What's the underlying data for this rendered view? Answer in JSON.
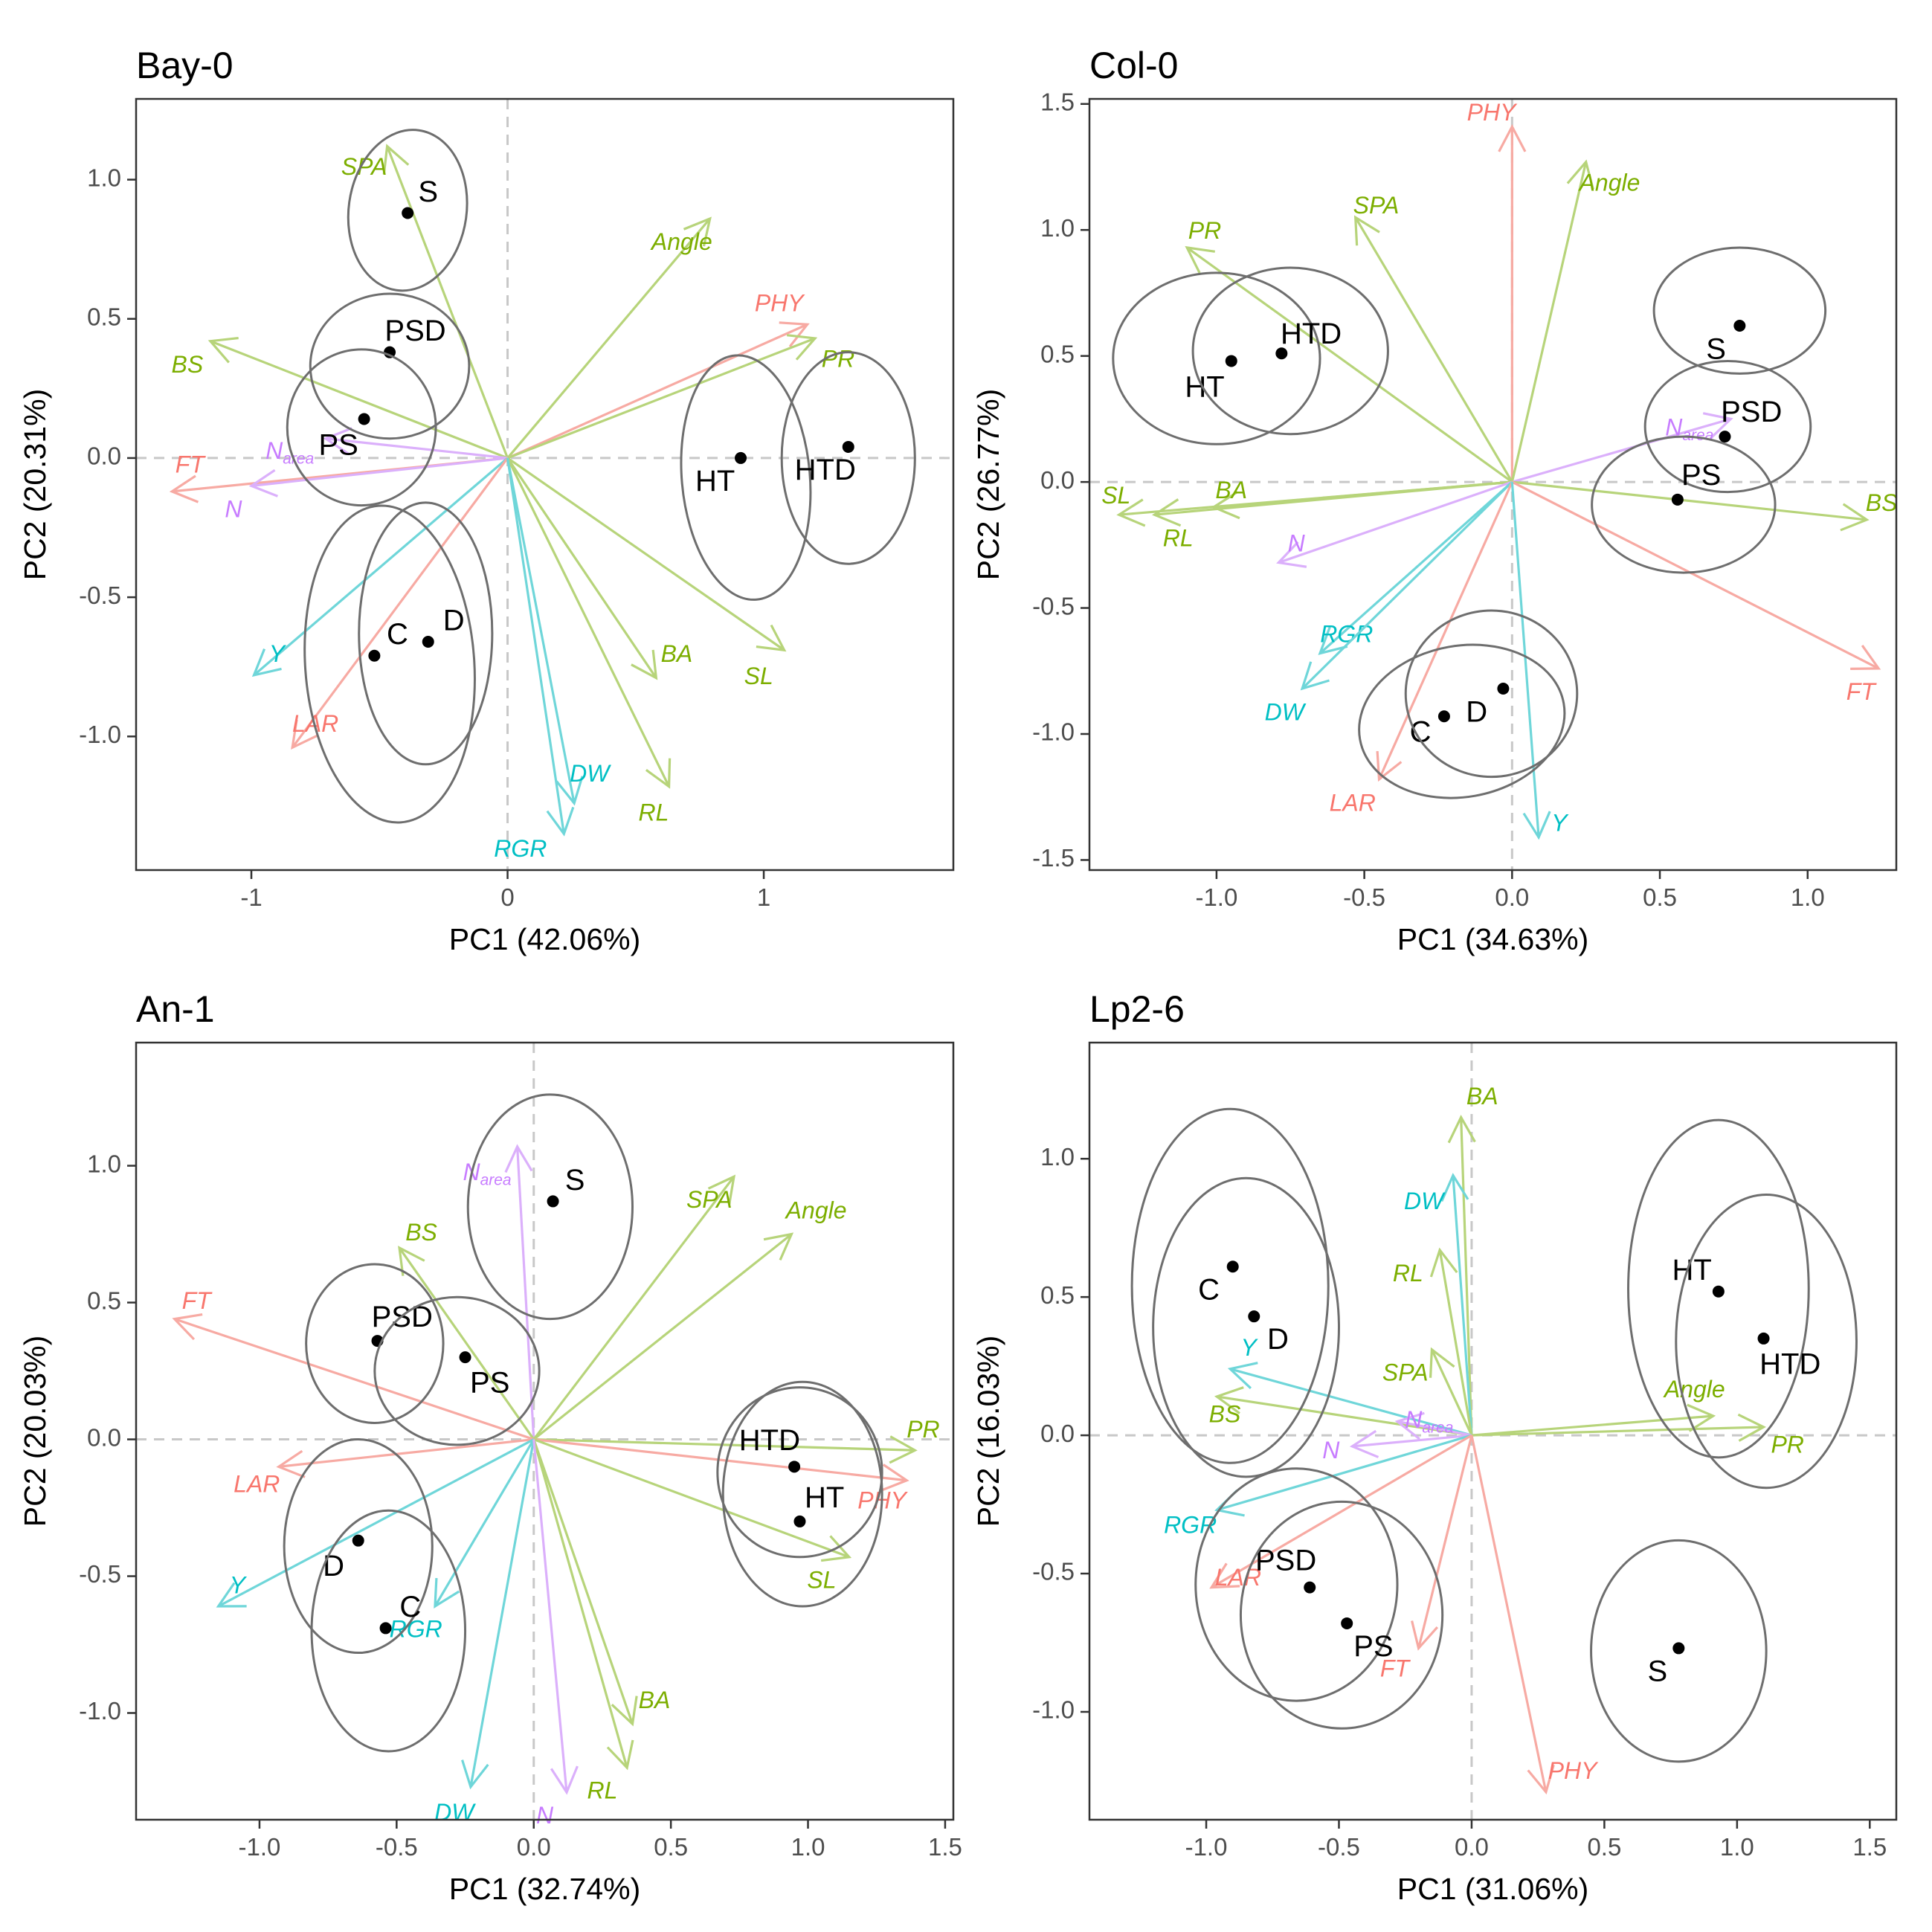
{
  "chart_data": [
    {
      "type": "scatter",
      "title": "Bay-0",
      "xlabel": "PC1 (42.06%)",
      "ylabel": "PC2 (20.31%)",
      "xlim": [
        -1.45,
        1.74
      ],
      "ylim": [
        -1.48,
        1.29
      ],
      "xticks": [
        -1,
        0,
        1
      ],
      "yticks": [
        -1.0,
        -0.5,
        0.0,
        0.5,
        1.0
      ],
      "xtick_labels": [
        "-1",
        "0",
        "1"
      ],
      "ytick_labels": [
        "-1.0",
        "-0.5",
        "0.0",
        "0.5",
        "1.0"
      ],
      "groups": [
        {
          "label": "S",
          "x": -0.39,
          "y": 0.88,
          "lx": -0.31,
          "ly": 0.95,
          "ex": -0.39,
          "ey": 0.89,
          "rx": 0.23,
          "ry": 0.29,
          "angle": 8
        },
        {
          "label": "PSD",
          "x": -0.46,
          "y": 0.38,
          "lx": -0.36,
          "ly": 0.45,
          "ex": -0.46,
          "ey": 0.33,
          "rx": 0.31,
          "ry": 0.26,
          "angle": 0
        },
        {
          "label": "PS",
          "x": -0.56,
          "y": 0.14,
          "lx": -0.66,
          "ly": 0.04,
          "ex": -0.57,
          "ey": 0.11,
          "rx": 0.29,
          "ry": 0.28,
          "angle": 0
        },
        {
          "label": "C",
          "x": -0.52,
          "y": -0.71,
          "lx": -0.43,
          "ly": -0.64,
          "ex": -0.46,
          "ey": -0.74,
          "rx": 0.33,
          "ry": 0.57,
          "angle": -4
        },
        {
          "label": "D",
          "x": -0.31,
          "y": -0.66,
          "lx": -0.21,
          "ly": -0.59,
          "ex": -0.32,
          "ey": -0.63,
          "rx": 0.26,
          "ry": 0.47,
          "angle": 0
        },
        {
          "label": "HT",
          "x": 0.91,
          "y": 0.0,
          "lx": 0.81,
          "ly": -0.09,
          "ex": 0.93,
          "ey": -0.07,
          "rx": 0.25,
          "ry": 0.44,
          "angle": -5
        },
        {
          "label": "HTD",
          "x": 1.33,
          "y": 0.04,
          "lx": 1.24,
          "ly": -0.05,
          "ex": 1.33,
          "ey": 0.0,
          "rx": 0.26,
          "ry": 0.38,
          "angle": 0
        }
      ],
      "loadings": [
        {
          "name": "SPA",
          "x": -0.47,
          "y": 1.12,
          "lx": -0.56,
          "ly": 1.04,
          "color": "#7cae00"
        },
        {
          "name": "Angle",
          "x": 0.79,
          "y": 0.86,
          "lx": 0.68,
          "ly": 0.77,
          "color": "#7cae00"
        },
        {
          "name": "PHY",
          "x": 1.17,
          "y": 0.48,
          "lx": 1.06,
          "ly": 0.55,
          "color": "#f8766d"
        },
        {
          "name": "PR",
          "x": 1.2,
          "y": 0.43,
          "lx": 1.29,
          "ly": 0.35,
          "color": "#7cae00"
        },
        {
          "name": "BS",
          "x": -1.16,
          "y": 0.42,
          "lx": -1.25,
          "ly": 0.33,
          "color": "#7cae00"
        },
        {
          "name": "FT",
          "x": -1.31,
          "y": -0.12,
          "lx": -1.24,
          "ly": -0.03,
          "color": "#f8766d"
        },
        {
          "name": "N",
          "x": -1.0,
          "y": -0.1,
          "lx": -1.07,
          "ly": -0.19,
          "color": "#c77cff"
        },
        {
          "name": "N",
          "sub": "area",
          "x": -0.71,
          "y": 0.07,
          "lx": -0.85,
          "ly": 0.02,
          "color": "#c77cff"
        },
        {
          "name": "Y",
          "x": -0.99,
          "y": -0.78,
          "lx": -0.9,
          "ly": -0.71,
          "color": "#00bfc4"
        },
        {
          "name": "LAR",
          "x": -0.84,
          "y": -1.04,
          "lx": -0.75,
          "ly": -0.96,
          "color": "#f8766d"
        },
        {
          "name": "BA",
          "x": 0.58,
          "y": -0.79,
          "lx": 0.66,
          "ly": -0.71,
          "color": "#7cae00"
        },
        {
          "name": "SL",
          "x": 1.08,
          "y": -0.69,
          "lx": 0.98,
          "ly": -0.79,
          "color": "#7cae00"
        },
        {
          "name": "DW",
          "x": 0.26,
          "y": -1.24,
          "lx": 0.32,
          "ly": -1.14,
          "color": "#00bfc4"
        },
        {
          "name": "RL",
          "x": 0.63,
          "y": -1.18,
          "lx": 0.57,
          "ly": -1.28,
          "color": "#7cae00"
        },
        {
          "name": "RGR",
          "x": 0.22,
          "y": -1.35,
          "lx": 0.05,
          "ly": -1.41,
          "color": "#00bfc4"
        }
      ]
    },
    {
      "type": "scatter",
      "title": "Col-0",
      "xlabel": "PC1 (34.63%)",
      "ylabel": "PC2 (26.77%)",
      "xlim": [
        -1.43,
        1.3
      ],
      "ylim": [
        -1.54,
        1.52
      ],
      "xticks": [
        -1.0,
        -0.5,
        0.0,
        0.5,
        1.0
      ],
      "yticks": [
        -1.5,
        -1.0,
        -0.5,
        0.0,
        0.5,
        1.0,
        1.5
      ],
      "xtick_labels": [
        "-1.0",
        "-0.5",
        "0.0",
        "0.5",
        "1.0"
      ],
      "ytick_labels": [
        "-1.5",
        "-1.0",
        "-0.5",
        "0.0",
        "0.5",
        "1.0",
        "1.5"
      ],
      "groups": [
        {
          "label": "HT",
          "x": -0.95,
          "y": 0.48,
          "lx": -1.04,
          "ly": 0.37,
          "ex": -1.0,
          "ey": 0.49,
          "rx": 0.35,
          "ry": 0.34,
          "angle": 0
        },
        {
          "label": "HTD",
          "x": -0.78,
          "y": 0.51,
          "lx": -0.68,
          "ly": 0.58,
          "ex": -0.75,
          "ey": 0.52,
          "rx": 0.33,
          "ry": 0.33,
          "angle": 0
        },
        {
          "label": "S",
          "x": 0.77,
          "y": 0.62,
          "lx": 0.69,
          "ly": 0.52,
          "ex": 0.77,
          "ey": 0.68,
          "rx": 0.29,
          "ry": 0.25,
          "angle": 0
        },
        {
          "label": "PSD",
          "x": 0.72,
          "y": 0.18,
          "lx": 0.81,
          "ly": 0.27,
          "ex": 0.73,
          "ey": 0.22,
          "rx": 0.28,
          "ry": 0.26,
          "angle": 0
        },
        {
          "label": "PS",
          "x": 0.56,
          "y": -0.07,
          "lx": 0.64,
          "ly": 0.02,
          "ex": 0.58,
          "ey": -0.09,
          "rx": 0.31,
          "ry": 0.27,
          "angle": 0
        },
        {
          "label": "C",
          "x": -0.23,
          "y": -0.93,
          "lx": -0.31,
          "ly": -1.0,
          "ex": -0.17,
          "ey": -0.95,
          "rx": 0.35,
          "ry": 0.3,
          "angle": -10
        },
        {
          "label": "D",
          "x": -0.03,
          "y": -0.82,
          "lx": -0.12,
          "ly": -0.92,
          "ex": -0.07,
          "ey": -0.84,
          "rx": 0.29,
          "ry": 0.33,
          "angle": 0
        }
      ],
      "loadings": [
        {
          "name": "PHY",
          "x": 0.0,
          "y": 1.41,
          "lx": -0.07,
          "ly": 1.46,
          "color": "#f8766d"
        },
        {
          "name": "Angle",
          "x": 0.25,
          "y": 1.27,
          "lx": 0.33,
          "ly": 1.18,
          "color": "#7cae00"
        },
        {
          "name": "SPA",
          "x": -0.53,
          "y": 1.05,
          "lx": -0.46,
          "ly": 1.09,
          "color": "#7cae00"
        },
        {
          "name": "PR",
          "x": -1.1,
          "y": 0.93,
          "lx": -1.04,
          "ly": 0.99,
          "color": "#7cae00"
        },
        {
          "name": "N",
          "sub": "area",
          "x": 0.74,
          "y": 0.25,
          "lx": 0.6,
          "ly": 0.21,
          "color": "#c77cff"
        },
        {
          "name": "BS",
          "x": 1.2,
          "y": -0.15,
          "lx": 1.25,
          "ly": -0.09,
          "color": "#7cae00"
        },
        {
          "name": "FT",
          "x": 1.24,
          "y": -0.74,
          "lx": 1.18,
          "ly": -0.84,
          "color": "#f8766d"
        },
        {
          "name": "SL",
          "x": -1.33,
          "y": -0.13,
          "lx": -1.34,
          "ly": -0.06,
          "color": "#7cae00"
        },
        {
          "name": "BA",
          "x": -1.01,
          "y": -0.1,
          "lx": -0.95,
          "ly": -0.04,
          "color": "#7cae00"
        },
        {
          "name": "RL",
          "x": -1.21,
          "y": -0.13,
          "lx": -1.13,
          "ly": -0.23,
          "color": "#7cae00"
        },
        {
          "name": "N",
          "x": -0.79,
          "y": -0.32,
          "lx": -0.73,
          "ly": -0.25,
          "color": "#c77cff"
        },
        {
          "name": "RGR",
          "x": -0.65,
          "y": -0.68,
          "lx": -0.56,
          "ly": -0.61,
          "color": "#00bfc4"
        },
        {
          "name": "DW",
          "x": -0.71,
          "y": -0.82,
          "lx": -0.77,
          "ly": -0.92,
          "color": "#00bfc4"
        },
        {
          "name": "LAR",
          "x": -0.45,
          "y": -1.18,
          "lx": -0.54,
          "ly": -1.28,
          "color": "#f8766d"
        },
        {
          "name": "Y",
          "x": 0.09,
          "y": -1.41,
          "lx": 0.16,
          "ly": -1.36,
          "color": "#00bfc4"
        }
      ]
    },
    {
      "type": "scatter",
      "title": "An-1",
      "xlabel": "PC1 (32.74%)",
      "ylabel": "PC2 (20.03%)",
      "xlim": [
        -1.45,
        1.53
      ],
      "ylim": [
        -1.39,
        1.45
      ],
      "xticks": [
        -1.0,
        -0.5,
        0.0,
        0.5,
        1.0,
        1.5
      ],
      "yticks": [
        -1.0,
        -0.5,
        0.0,
        0.5,
        1.0
      ],
      "xtick_labels": [
        "-1.0",
        "-0.5",
        "0.0",
        "0.5",
        "1.0",
        "1.5"
      ],
      "ytick_labels": [
        "-1.0",
        "-0.5",
        "0.0",
        "0.5",
        "1.0"
      ],
      "groups": [
        {
          "label": "S",
          "x": 0.07,
          "y": 0.87,
          "lx": 0.15,
          "ly": 0.94,
          "ex": 0.06,
          "ey": 0.85,
          "rx": 0.3,
          "ry": 0.41,
          "angle": 0
        },
        {
          "label": "PSD",
          "x": -0.57,
          "y": 0.36,
          "lx": -0.48,
          "ly": 0.44,
          "ex": -0.58,
          "ey": 0.35,
          "rx": 0.25,
          "ry": 0.29,
          "angle": 0
        },
        {
          "label": "PS",
          "x": -0.25,
          "y": 0.3,
          "lx": -0.16,
          "ly": 0.2,
          "ex": -0.28,
          "ey": 0.25,
          "rx": 0.3,
          "ry": 0.27,
          "angle": 0
        },
        {
          "label": "D",
          "x": -0.64,
          "y": -0.37,
          "lx": -0.73,
          "ly": -0.47,
          "ex": -0.64,
          "ey": -0.39,
          "rx": 0.27,
          "ry": 0.39,
          "angle": 0
        },
        {
          "label": "C",
          "x": -0.54,
          "y": -0.69,
          "lx": -0.45,
          "ly": -0.62,
          "ex": -0.53,
          "ey": -0.7,
          "rx": 0.28,
          "ry": 0.44,
          "angle": 0
        },
        {
          "label": "HTD",
          "x": 0.95,
          "y": -0.1,
          "lx": 0.86,
          "ly": -0.01,
          "ex": 0.97,
          "ey": -0.12,
          "rx": 0.3,
          "ry": 0.31,
          "angle": 0
        },
        {
          "label": "HT",
          "x": 0.97,
          "y": -0.3,
          "lx": 1.06,
          "ly": -0.22,
          "ex": 0.98,
          "ey": -0.2,
          "rx": 0.29,
          "ry": 0.41,
          "angle": 0
        }
      ],
      "loadings": [
        {
          "name": "N",
          "sub": "area",
          "x": -0.06,
          "y": 1.07,
          "lx": -0.17,
          "ly": 0.97,
          "color": "#c77cff"
        },
        {
          "name": "SPA",
          "x": 0.73,
          "y": 0.96,
          "lx": 0.64,
          "ly": 0.87,
          "color": "#7cae00"
        },
        {
          "name": "Angle",
          "x": 0.94,
          "y": 0.75,
          "lx": 1.03,
          "ly": 0.83,
          "color": "#7cae00"
        },
        {
          "name": "BS",
          "x": -0.49,
          "y": 0.7,
          "lx": -0.41,
          "ly": 0.75,
          "color": "#7cae00"
        },
        {
          "name": "FT",
          "x": -1.31,
          "y": 0.44,
          "lx": -1.23,
          "ly": 0.5,
          "color": "#f8766d"
        },
        {
          "name": "LAR",
          "x": -0.93,
          "y": -0.1,
          "lx": -1.01,
          "ly": -0.17,
          "color": "#f8766d"
        },
        {
          "name": "PR",
          "x": 1.39,
          "y": -0.04,
          "lx": 1.42,
          "ly": 0.03,
          "color": "#7cae00"
        },
        {
          "name": "PHY",
          "x": 1.36,
          "y": -0.15,
          "lx": 1.27,
          "ly": -0.23,
          "color": "#f8766d"
        },
        {
          "name": "SL",
          "x": 1.15,
          "y": -0.43,
          "lx": 1.05,
          "ly": -0.52,
          "color": "#7cae00"
        },
        {
          "name": "Y",
          "x": -1.15,
          "y": -0.61,
          "lx": -1.08,
          "ly": -0.54,
          "color": "#00bfc4"
        },
        {
          "name": "RGR",
          "x": -0.36,
          "y": -0.61,
          "lx": -0.43,
          "ly": -0.7,
          "color": "#00bfc4"
        },
        {
          "name": "DW",
          "x": -0.23,
          "y": -1.27,
          "lx": -0.29,
          "ly": -1.37,
          "color": "#00bfc4"
        },
        {
          "name": "BA",
          "x": 0.36,
          "y": -1.04,
          "lx": 0.44,
          "ly": -0.96,
          "color": "#7cae00"
        },
        {
          "name": "RL",
          "x": 0.34,
          "y": -1.2,
          "lx": 0.25,
          "ly": -1.29,
          "color": "#7cae00"
        },
        {
          "name": "N",
          "x": 0.12,
          "y": -1.29,
          "lx": 0.04,
          "ly": -1.38,
          "color": "#c77cff"
        }
      ]
    },
    {
      "type": "scatter",
      "title": "Lp2-6",
      "xlabel": "PC1 (31.06%)",
      "ylabel": "PC2 (16.03%)",
      "xlim": [
        -1.44,
        1.6
      ],
      "ylim": [
        -1.39,
        1.42
      ],
      "xticks": [
        -1.0,
        -0.5,
        0.0,
        0.5,
        1.0,
        1.5
      ],
      "yticks": [
        -1.0,
        -0.5,
        0.0,
        0.5,
        1.0
      ],
      "xtick_labels": [
        "-1.0",
        "-0.5",
        "0.0",
        "0.5",
        "1.0",
        "1.5"
      ],
      "ytick_labels": [
        "-1.0",
        "-0.5",
        "0.0",
        "0.5",
        "1.0"
      ],
      "groups": [
        {
          "label": "C",
          "x": -0.9,
          "y": 0.61,
          "lx": -0.99,
          "ly": 0.52,
          "ex": -0.91,
          "ey": 0.54,
          "rx": 0.37,
          "ry": 0.64,
          "angle": 0
        },
        {
          "label": "D",
          "x": -0.82,
          "y": 0.43,
          "lx": -0.73,
          "ly": 0.34,
          "ex": -0.85,
          "ey": 0.39,
          "rx": 0.35,
          "ry": 0.54,
          "angle": 0
        },
        {
          "label": "PSD",
          "x": -0.61,
          "y": -0.55,
          "lx": -0.7,
          "ly": -0.46,
          "ex": -0.66,
          "ey": -0.54,
          "rx": 0.38,
          "ry": 0.42,
          "angle": 0
        },
        {
          "label": "PS",
          "x": -0.47,
          "y": -0.68,
          "lx": -0.37,
          "ly": -0.77,
          "ex": -0.49,
          "ey": -0.65,
          "rx": 0.38,
          "ry": 0.41,
          "angle": 0
        },
        {
          "label": "HT",
          "x": 0.93,
          "y": 0.52,
          "lx": 0.83,
          "ly": 0.59,
          "ex": 0.93,
          "ey": 0.53,
          "rx": 0.34,
          "ry": 0.61,
          "angle": 0
        },
        {
          "label": "HTD",
          "x": 1.1,
          "y": 0.35,
          "lx": 1.2,
          "ly": 0.25,
          "ex": 1.11,
          "ey": 0.34,
          "rx": 0.34,
          "ry": 0.53,
          "angle": 0
        },
        {
          "label": "S",
          "x": 0.78,
          "y": -0.77,
          "lx": 0.7,
          "ly": -0.86,
          "ex": 0.78,
          "ey": -0.78,
          "rx": 0.33,
          "ry": 0.4,
          "angle": 0
        }
      ],
      "loadings": [
        {
          "name": "BA",
          "x": -0.04,
          "y": 1.15,
          "lx": 0.04,
          "ly": 1.22,
          "color": "#7cae00"
        },
        {
          "name": "DW",
          "x": -0.07,
          "y": 0.94,
          "lx": -0.18,
          "ly": 0.84,
          "color": "#00bfc4"
        },
        {
          "name": "RL",
          "x": -0.12,
          "y": 0.67,
          "lx": -0.24,
          "ly": 0.58,
          "color": "#7cae00"
        },
        {
          "name": "SPA",
          "x": -0.15,
          "y": 0.31,
          "lx": -0.25,
          "ly": 0.22,
          "color": "#7cae00"
        },
        {
          "name": "Y",
          "x": -0.91,
          "y": 0.24,
          "lx": -0.84,
          "ly": 0.31,
          "color": "#00bfc4"
        },
        {
          "name": "BS",
          "x": -0.96,
          "y": 0.14,
          "lx": -0.93,
          "ly": 0.07,
          "color": "#7cae00"
        },
        {
          "name": "N",
          "sub": "area",
          "x": -0.28,
          "y": 0.05,
          "lx": -0.16,
          "ly": 0.05,
          "color": "#c77cff"
        },
        {
          "name": "N",
          "x": -0.45,
          "y": -0.04,
          "lx": -0.53,
          "ly": -0.06,
          "color": "#c77cff"
        },
        {
          "name": "Angle",
          "x": 0.91,
          "y": 0.07,
          "lx": 0.84,
          "ly": 0.16,
          "color": "#7cae00"
        },
        {
          "name": "PR",
          "x": 1.1,
          "y": 0.03,
          "lx": 1.19,
          "ly": -0.04,
          "color": "#7cae00"
        },
        {
          "name": "RGR",
          "x": -0.96,
          "y": -0.27,
          "lx": -1.06,
          "ly": -0.33,
          "color": "#00bfc4"
        },
        {
          "name": "LAR",
          "x": -0.98,
          "y": -0.55,
          "lx": -0.88,
          "ly": -0.52,
          "color": "#f8766d"
        },
        {
          "name": "FT",
          "x": -0.2,
          "y": -0.77,
          "lx": -0.29,
          "ly": -0.85,
          "color": "#f8766d"
        },
        {
          "name": "PHY",
          "x": 0.28,
          "y": -1.29,
          "lx": 0.38,
          "ly": -1.22,
          "color": "#f8766d"
        }
      ]
    }
  ]
}
